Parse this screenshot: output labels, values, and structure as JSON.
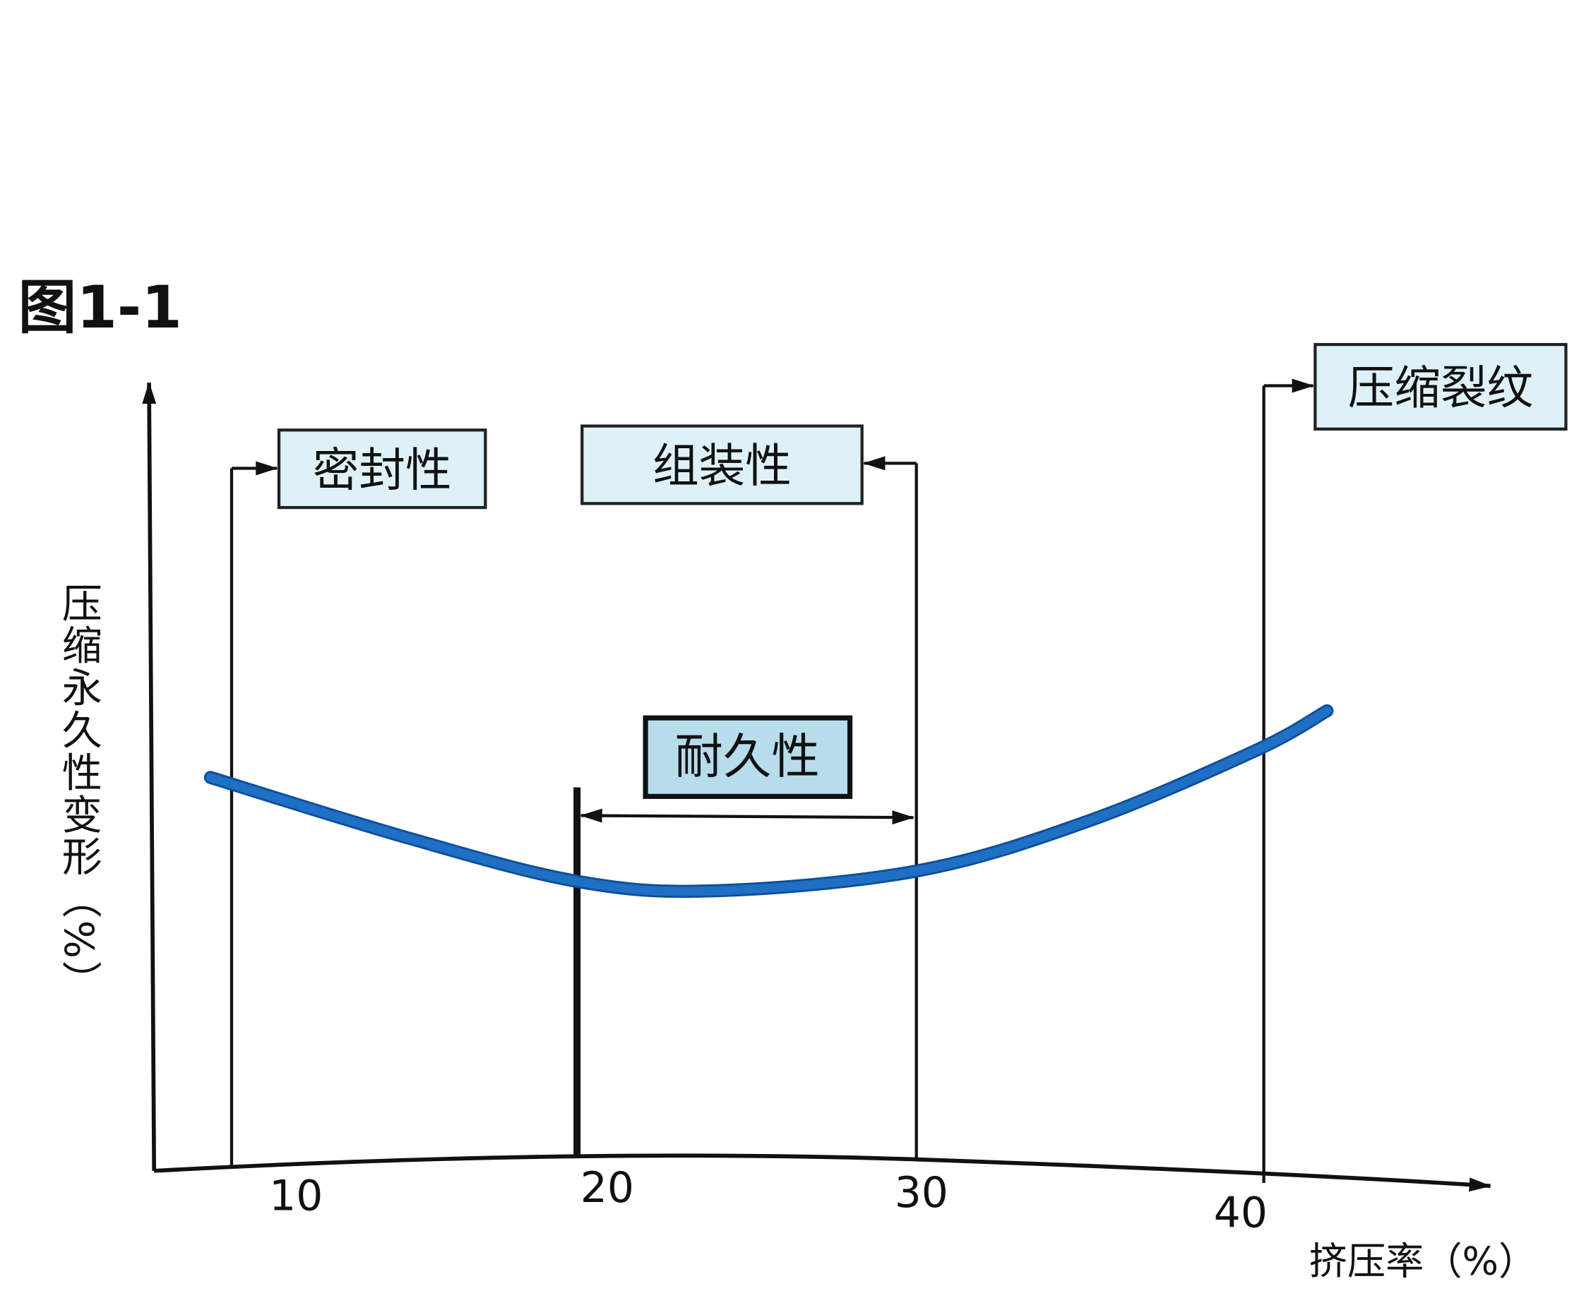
{
  "chart_data": {
    "type": "line",
    "title": "图1-1",
    "xlabel": "挤压率（%）",
    "ylabel": "压缩永久性变形（%）",
    "xlim": [
      5,
      45
    ],
    "ylim": [
      0,
      100
    ],
    "x_ticks": [
      "10",
      "20",
      "30",
      "40"
    ],
    "x_tick_values": [
      10,
      20,
      30,
      40
    ],
    "grid": false,
    "series": [
      {
        "color": "#1f6fc4",
        "x": [
          9.2,
          15,
          20,
          24,
          30,
          35,
          40,
          42.1
        ],
        "y": [
          49.6,
          42,
          36.5,
          35.3,
          37.8,
          44,
          53,
          58
        ]
      }
    ],
    "annotations": [
      {
        "label": "密封性",
        "x": 10,
        "direction": "right"
      },
      {
        "label": "组装性",
        "x": 30,
        "direction": "left"
      },
      {
        "label": "压缩裂纹",
        "x": 40,
        "direction": "right"
      },
      {
        "label": "耐久性",
        "range": [
          20,
          30
        ]
      }
    ],
    "colors": {
      "curve": "#1f6fc4",
      "box_fill": "#dff1f8",
      "box_fill_highlight": "#b7dcec"
    }
  }
}
